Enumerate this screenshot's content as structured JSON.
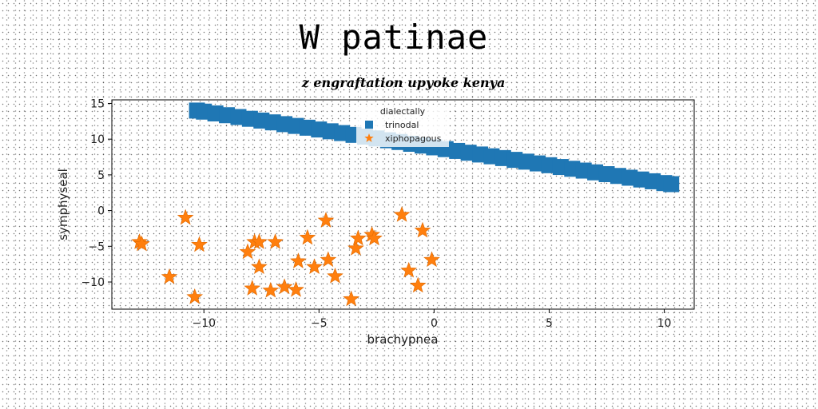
{
  "chart_data": {
    "type": "scatter",
    "title": "W patinae",
    "subtitle": "z engraftation upyoke kenya",
    "xlabel": "brachypnea",
    "ylabel": "symphyseal",
    "xlim": [
      -14,
      11.3
    ],
    "ylim": [
      -13.8,
      15.5
    ],
    "xticks": [
      -10,
      -5,
      0,
      5,
      10
    ],
    "yticks": [
      -10,
      -5,
      0,
      5,
      10,
      15
    ],
    "xtick_labels": [
      "−10",
      "−5",
      "0",
      "5",
      "10"
    ],
    "ytick_labels": [
      "−10",
      "−5",
      "0",
      "5",
      "10",
      "15"
    ],
    "grid": false,
    "legend": {
      "title": "dialectally",
      "position": "top-center"
    },
    "series": [
      {
        "name": "trinodal",
        "marker": "square",
        "color": "#1f77b4",
        "x": [
          -10.3,
          -10.0,
          -9.5,
          -9.0,
          -8.5,
          -8.0,
          -7.5,
          -7.0,
          -6.5,
          -6.0,
          -5.5,
          -5.0,
          -4.5,
          -4.0,
          -3.5,
          -3.0,
          -2.5,
          -2.0,
          -1.5,
          -1.0,
          -0.5,
          0.0,
          0.5,
          1.0,
          1.5,
          2.0,
          2.5,
          3.0,
          3.5,
          4.0,
          4.5,
          5.0,
          5.5,
          6.0,
          6.5,
          7.0,
          7.5,
          8.0,
          8.5,
          9.0,
          9.5,
          10.0,
          10.3
        ],
        "y": [
          14.0,
          13.85,
          13.6,
          13.35,
          13.1,
          12.85,
          12.6,
          12.35,
          12.1,
          11.85,
          11.6,
          11.35,
          11.1,
          10.85,
          10.6,
          10.35,
          10.1,
          9.85,
          9.6,
          9.35,
          9.1,
          8.85,
          8.6,
          8.35,
          8.1,
          7.85,
          7.6,
          7.35,
          7.1,
          6.85,
          6.6,
          6.35,
          6.1,
          5.85,
          5.6,
          5.35,
          5.1,
          4.85,
          4.6,
          4.35,
          4.1,
          3.85,
          3.7
        ]
      },
      {
        "name": "xiphopagous",
        "marker": "star",
        "color": "#ff7f0e",
        "x": [
          -12.8,
          -12.7,
          -10.8,
          -10.2,
          -11.5,
          -10.4,
          -8.1,
          -7.8,
          -7.6,
          -7.6,
          -7.9,
          -6.9,
          -7.1,
          -6.5,
          -6.0,
          -5.9,
          -5.5,
          -5.2,
          -4.7,
          -4.6,
          -4.3,
          -3.6,
          -3.4,
          -3.3,
          -2.7,
          -2.6,
          -1.4,
          -1.1,
          -0.7,
          -0.5,
          -0.1
        ],
        "y": [
          -4.4,
          -4.7,
          -1.0,
          -4.8,
          -9.3,
          -12.1,
          -5.8,
          -4.4,
          -7.9,
          -4.4,
          -10.9,
          -4.4,
          -11.2,
          -10.7,
          -11.1,
          -7.1,
          -3.8,
          -7.9,
          -1.4,
          -6.9,
          -9.2,
          -12.4,
          -5.3,
          -3.9,
          -3.4,
          -3.9,
          -0.6,
          -8.4,
          -10.5,
          -2.8,
          -6.9
        ]
      }
    ]
  }
}
